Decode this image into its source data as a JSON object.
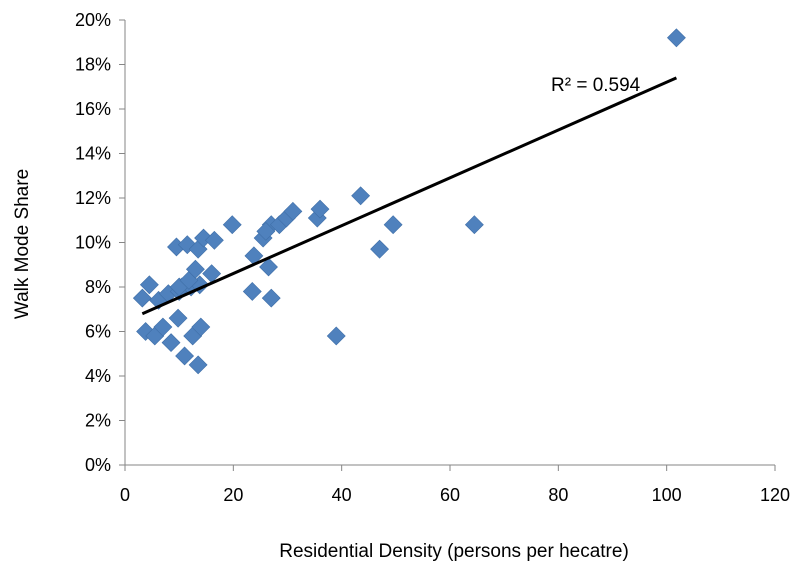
{
  "chart_data": {
    "type": "scatter",
    "title": "",
    "xlabel": "Residential Density (persons per hecatre)",
    "ylabel": "Walk Mode Share",
    "xlim": [
      0,
      120
    ],
    "ylim": [
      0,
      20
    ],
    "x_ticks": [
      0,
      20,
      40,
      60,
      80,
      100,
      120
    ],
    "y_ticks": [
      0,
      2,
      4,
      6,
      8,
      10,
      12,
      14,
      16,
      18,
      20
    ],
    "y_unit_suffix": "%",
    "grid": false,
    "legend": "none",
    "marker": "diamond",
    "marker_color": "#4F81BD",
    "trendline_color": "#000000",
    "annotation": "R² = 0.594",
    "trendline": {
      "type": "linear",
      "x": [
        3.2,
        101.8
      ],
      "y": [
        6.8,
        17.4
      ]
    },
    "series": [
      {
        "x": [
          3.2,
          4.5,
          6.2,
          8.0,
          9.5,
          10.0,
          10.5,
          11.5,
          12.2,
          13.5,
          13.8,
          14.5,
          16.0,
          16.5,
          19.8,
          23.8,
          25.5,
          26.5,
          27.0,
          28.5,
          29.8,
          31.0,
          35.5,
          36.0,
          43.5,
          47.0,
          49.5,
          64.5,
          101.8,
          3.8,
          5.5,
          7.0,
          8.5,
          9.8,
          11.0,
          12.5,
          13.5,
          14.0,
          23.5,
          26.0,
          27.0,
          39.0,
          10.0,
          11.8,
          13.0
        ],
        "y": [
          7.5,
          8.1,
          7.4,
          7.7,
          9.8,
          7.8,
          8.0,
          9.9,
          8.0,
          9.7,
          8.1,
          10.2,
          8.6,
          10.1,
          10.8,
          9.4,
          10.2,
          8.9,
          10.8,
          10.8,
          11.1,
          11.4,
          11.1,
          11.5,
          12.1,
          9.7,
          10.8,
          10.8,
          19.2,
          6.0,
          5.8,
          6.2,
          5.5,
          6.6,
          4.9,
          5.8,
          4.5,
          6.2,
          7.8,
          10.5,
          7.5,
          5.8,
          8.0,
          8.3,
          8.8
        ]
      }
    ]
  }
}
